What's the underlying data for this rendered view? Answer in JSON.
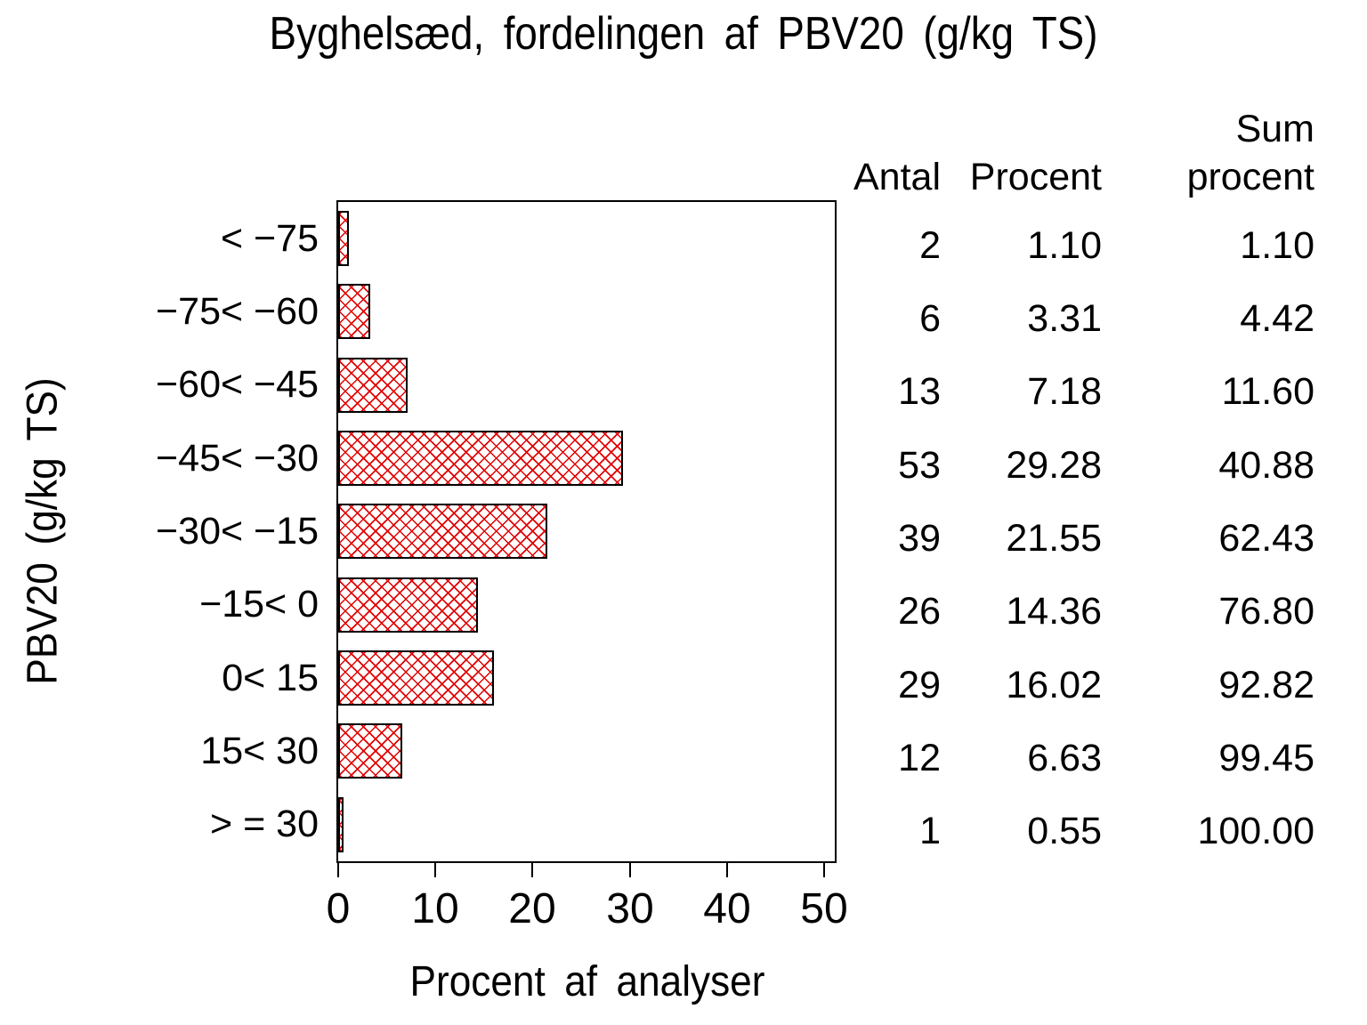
{
  "chart_data": {
    "type": "bar",
    "orientation": "horizontal",
    "title": "Byghelsæd, fordelingen af PBV20 (g/kg TS)",
    "xlabel": "Procent af analyser",
    "ylabel": "PBV20 (g/kg TS)",
    "xlim": [
      0,
      50
    ],
    "x_ticks": [
      "0",
      "10",
      "20",
      "30",
      "40",
      "50"
    ],
    "grid": false,
    "legend": false,
    "categories": [
      "< −75",
      "−75< −60",
      "−60< −45",
      "−45< −30",
      "−30< −15",
      "−15< 0",
      "0< 15",
      "15< 30",
      "> = 30"
    ],
    "series": [
      {
        "name": "Procent",
        "values": [
          1.1,
          3.31,
          7.18,
          29.28,
          21.55,
          14.36,
          16.02,
          6.63,
          0.55
        ]
      },
      {
        "name": "Antal",
        "values": [
          2,
          6,
          13,
          53,
          39,
          26,
          29,
          12,
          1
        ]
      },
      {
        "name": "Sum procent",
        "values": [
          1.1,
          4.42,
          11.6,
          40.88,
          62.43,
          76.8,
          92.82,
          99.45,
          100.0
        ]
      }
    ],
    "bar_pattern": "crosshatch"
  },
  "table": {
    "header": {
      "col1": "Antal",
      "col2": "Procent",
      "col3_line1": "Sum",
      "col3_line2": "procent"
    },
    "rows": [
      {
        "antal": "2",
        "procent": "1.10",
        "sum_procent": "1.10"
      },
      {
        "antal": "6",
        "procent": "3.31",
        "sum_procent": "4.42"
      },
      {
        "antal": "13",
        "procent": "7.18",
        "sum_procent": "11.60"
      },
      {
        "antal": "53",
        "procent": "29.28",
        "sum_procent": "40.88"
      },
      {
        "antal": "39",
        "procent": "21.55",
        "sum_procent": "62.43"
      },
      {
        "antal": "26",
        "procent": "14.36",
        "sum_procent": "76.80"
      },
      {
        "antal": "29",
        "procent": "16.02",
        "sum_procent": "92.82"
      },
      {
        "antal": "12",
        "procent": "6.63",
        "sum_procent": "99.45"
      },
      {
        "antal": "1",
        "procent": "0.55",
        "sum_procent": "100.00"
      }
    ]
  },
  "colors": {
    "bar_hatch": "#e00000",
    "axis": "#000000",
    "background": "#ffffff",
    "text": "#000000"
  }
}
